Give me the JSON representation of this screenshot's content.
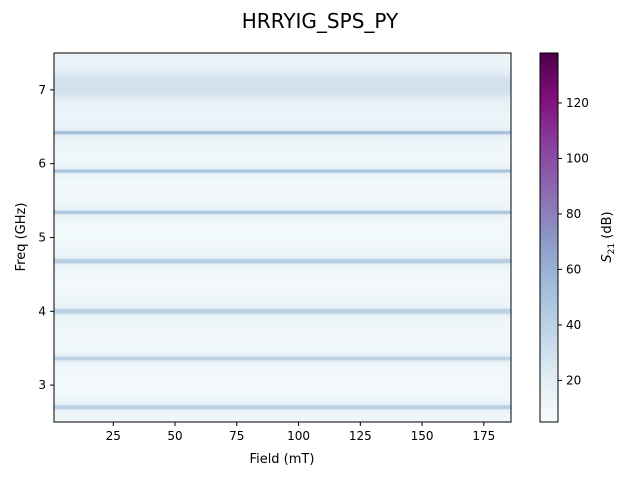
{
  "chart_data": {
    "type": "heatmap",
    "title": "HRRYIG_SPS_PY",
    "xlabel": "Field (mT)",
    "ylabel": "Freq (GHz)",
    "colorbar_label": "S21 (dB)",
    "colorbar_label_main": "S",
    "colorbar_label_sub": "21",
    "colorbar_label_unit": " (dB)",
    "xlim": [
      1,
      186
    ],
    "ylim": [
      2.5,
      7.5
    ],
    "xticks": [
      25,
      50,
      75,
      100,
      125,
      150,
      175
    ],
    "yticks": [
      3,
      4,
      5,
      6,
      7
    ],
    "colorbar_range": [
      5,
      138
    ],
    "colorbar_ticks": [
      20,
      40,
      60,
      80,
      100,
      120
    ],
    "colormap": "BuPu",
    "colormap_stops": [
      "#f7fcfd",
      "#e0ecf4",
      "#bfd3e6",
      "#9ebcda",
      "#8c96c6",
      "#8c6bb1",
      "#88419d",
      "#810f7c",
      "#4d004b"
    ],
    "background_level_db": 8,
    "resonances": [
      {
        "freq_ghz": 2.7,
        "level_db": 42,
        "width_ghz": 0.02
      },
      {
        "freq_ghz": 3.36,
        "level_db": 38,
        "width_ghz": 0.02
      },
      {
        "freq_ghz": 4.0,
        "level_db": 40,
        "width_ghz": 0.025
      },
      {
        "freq_ghz": 4.68,
        "level_db": 42,
        "width_ghz": 0.022
      },
      {
        "freq_ghz": 5.34,
        "level_db": 48,
        "width_ghz": 0.015
      },
      {
        "freq_ghz": 5.9,
        "level_db": 50,
        "width_ghz": 0.012
      },
      {
        "freq_ghz": 6.42,
        "level_db": 52,
        "width_ghz": 0.012
      },
      {
        "freq_ghz": 7.05,
        "level_db": 28,
        "width_ghz": 0.12
      }
    ]
  }
}
